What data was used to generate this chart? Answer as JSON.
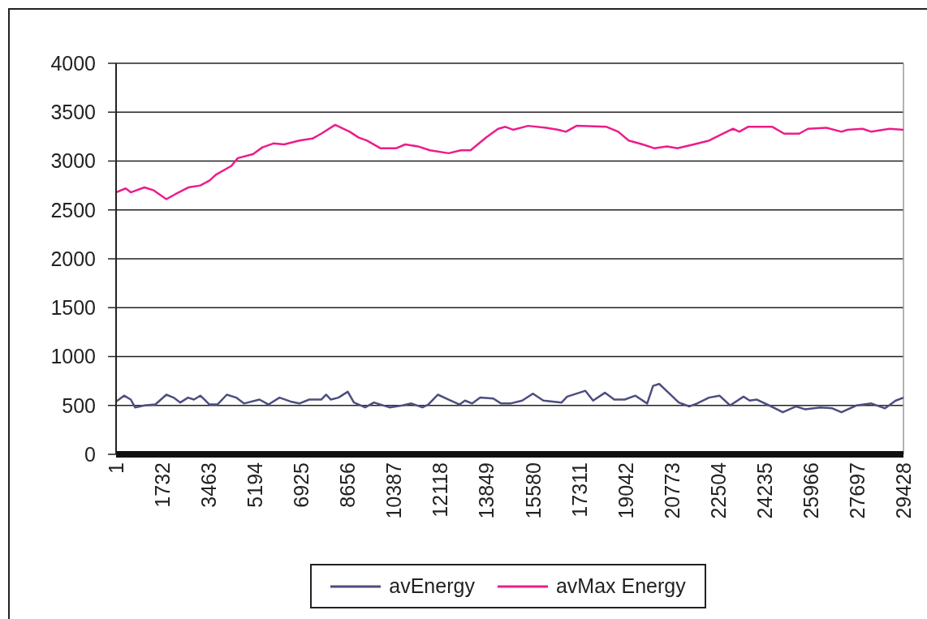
{
  "chart_data": {
    "type": "line",
    "xlim": [
      1,
      29428
    ],
    "xticks": [
      1,
      1732,
      3463,
      5194,
      6925,
      8656,
      10387,
      12118,
      13849,
      15580,
      17311,
      19042,
      20773,
      22504,
      24235,
      25966,
      27697,
      29428
    ],
    "ylim": [
      0,
      4000
    ],
    "yticks": [
      0,
      500,
      1000,
      1500,
      2000,
      2500,
      3000,
      3500,
      4000
    ],
    "grid": "y",
    "legend": "bottom",
    "series": [
      {
        "name": "avEnergy",
        "color": "#4d4d80",
        "x": [
          1,
          300,
          550,
          710,
          1060,
          1470,
          1880,
          2150,
          2400,
          2690,
          2910,
          3150,
          3490,
          3790,
          4140,
          4490,
          4780,
          5360,
          5700,
          6110,
          6520,
          6850,
          7220,
          7670,
          7850,
          8030,
          8310,
          8660,
          8890,
          9310,
          9640,
          10220,
          10700,
          11040,
          11450,
          11670,
          12030,
          12430,
          12840,
          13040,
          13310,
          13610,
          14100,
          14390,
          14740,
          15180,
          15580,
          15970,
          16650,
          16860,
          17310,
          17540,
          17830,
          18270,
          18620,
          19010,
          19410,
          19850,
          20070,
          20300,
          20690,
          21030,
          21430,
          21710,
          22160,
          22550,
          22950,
          23450,
          23680,
          23950,
          24410,
          24920,
          25420,
          25760,
          26320,
          26770,
          27110,
          27670,
          28230,
          28740,
          29140,
          29428
        ],
        "values": [
          540,
          600,
          560,
          480,
          500,
          510,
          610,
          580,
          530,
          580,
          560,
          600,
          510,
          510,
          610,
          580,
          520,
          560,
          510,
          580,
          540,
          520,
          560,
          560,
          610,
          560,
          580,
          640,
          530,
          480,
          530,
          480,
          500,
          520,
          480,
          510,
          610,
          560,
          510,
          550,
          520,
          580,
          570,
          520,
          520,
          550,
          620,
          550,
          530,
          590,
          630,
          650,
          550,
          630,
          560,
          560,
          600,
          520,
          700,
          720,
          620,
          530,
          490,
          520,
          580,
          600,
          500,
          590,
          550,
          560,
          500,
          430,
          490,
          460,
          480,
          470,
          430,
          500,
          520,
          470,
          550,
          580
        ]
      },
      {
        "name": "avMax Energy",
        "color": "#ec1c8c",
        "x": [
          1,
          360,
          550,
          1060,
          1410,
          1880,
          2210,
          2700,
          3150,
          3490,
          3730,
          4310,
          4550,
          5120,
          5470,
          5880,
          6280,
          6850,
          7340,
          7670,
          8190,
          8730,
          9070,
          9370,
          9890,
          10460,
          10810,
          11280,
          11730,
          12430,
          12890,
          13250,
          13830,
          14280,
          14550,
          14840,
          15400,
          16070,
          16530,
          16810,
          17210,
          18330,
          18770,
          19160,
          19680,
          20130,
          20590,
          20980,
          21590,
          22170,
          22610,
          23060,
          23290,
          23620,
          24530,
          24970,
          25530,
          25860,
          26550,
          27110,
          27340,
          27900,
          28230,
          28910,
          29428
        ],
        "values": [
          2680,
          2720,
          2680,
          2730,
          2700,
          2610,
          2660,
          2730,
          2750,
          2800,
          2860,
          2950,
          3030,
          3070,
          3140,
          3180,
          3170,
          3210,
          3230,
          3280,
          3370,
          3300,
          3240,
          3210,
          3130,
          3130,
          3170,
          3150,
          3110,
          3080,
          3110,
          3110,
          3240,
          3330,
          3350,
          3320,
          3360,
          3340,
          3320,
          3300,
          3360,
          3350,
          3300,
          3210,
          3170,
          3130,
          3150,
          3130,
          3170,
          3210,
          3270,
          3330,
          3300,
          3350,
          3350,
          3280,
          3280,
          3330,
          3340,
          3300,
          3320,
          3330,
          3300,
          3330,
          3320
        ]
      }
    ]
  }
}
